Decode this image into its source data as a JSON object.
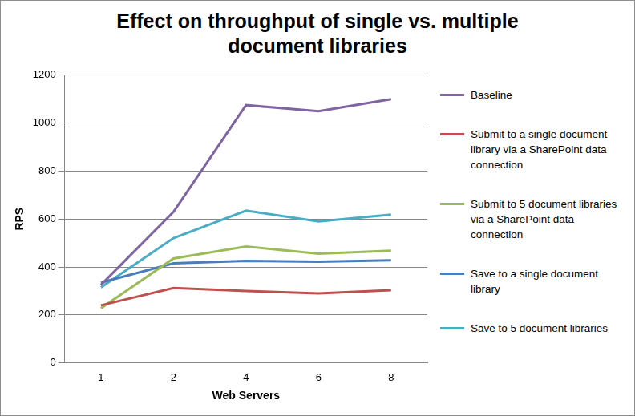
{
  "chart_data": {
    "type": "line",
    "title": "Effect on throughput of single vs. multiple document libraries",
    "x_label": "Web Servers",
    "y_label": "RPS",
    "categories": [
      "1",
      "2",
      "4",
      "6",
      "8"
    ],
    "series": [
      {
        "name": "Baseline",
        "color": "#8064A2",
        "values": [
          325,
          630,
          1075,
          1050,
          1100
        ]
      },
      {
        "name": "Submit to a single document library via a SharePoint data connection",
        "color": "#C0504D",
        "values": [
          240,
          312,
          300,
          290,
          303
        ]
      },
      {
        "name": "Submit to 5 document libraries via a SharePoint data connection",
        "color": "#9BBB59",
        "values": [
          228,
          435,
          485,
          455,
          468
        ]
      },
      {
        "name": "Save to a single document library",
        "color": "#4A7EBB",
        "values": [
          335,
          415,
          425,
          422,
          428
        ]
      },
      {
        "name": "Save to 5 document libraries",
        "color": "#4BACC6",
        "values": [
          315,
          520,
          635,
          590,
          618
        ]
      }
    ],
    "ylim": [
      0,
      1200
    ],
    "yticks": [
      0,
      200,
      400,
      600,
      800,
      1000,
      1200
    ],
    "grid": true,
    "legend": "right"
  }
}
